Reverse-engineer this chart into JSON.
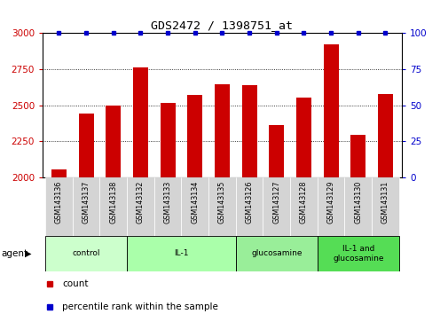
{
  "title": "GDS2472 / 1398751_at",
  "samples": [
    "GSM143136",
    "GSM143137",
    "GSM143138",
    "GSM143132",
    "GSM143133",
    "GSM143134",
    "GSM143135",
    "GSM143126",
    "GSM143127",
    "GSM143128",
    "GSM143129",
    "GSM143130",
    "GSM143131"
  ],
  "counts": [
    2055,
    2440,
    2495,
    2760,
    2515,
    2570,
    2645,
    2640,
    2360,
    2550,
    2920,
    2295,
    2580
  ],
  "percentile_ranks": [
    100,
    100,
    100,
    100,
    100,
    100,
    100,
    100,
    100,
    100,
    100,
    100,
    100
  ],
  "bar_color": "#cc0000",
  "dot_color": "#0000cc",
  "ylim_left": [
    2000,
    3000
  ],
  "ylim_right": [
    0,
    100
  ],
  "yticks_left": [
    2000,
    2250,
    2500,
    2750,
    3000
  ],
  "yticks_right": [
    0,
    25,
    50,
    75,
    100
  ],
  "groups": [
    {
      "label": "control",
      "indices": [
        0,
        1,
        2
      ],
      "color": "#ccffcc"
    },
    {
      "label": "IL-1",
      "indices": [
        3,
        4,
        5,
        6
      ],
      "color": "#aaffaa"
    },
    {
      "label": "glucosamine",
      "indices": [
        7,
        8,
        9
      ],
      "color": "#99ee99"
    },
    {
      "label": "IL-1 and\nglucosamine",
      "indices": [
        10,
        11,
        12
      ],
      "color": "#55dd55"
    }
  ],
  "agent_label": "agent",
  "legend_count_label": "count",
  "legend_percentile_label": "percentile rank within the sample",
  "tick_label_color_left": "#cc0000",
  "tick_label_color_right": "#0000cc",
  "grid_color": "black",
  "background_color": "#ffffff",
  "sample_box_color": "#d4d4d4"
}
